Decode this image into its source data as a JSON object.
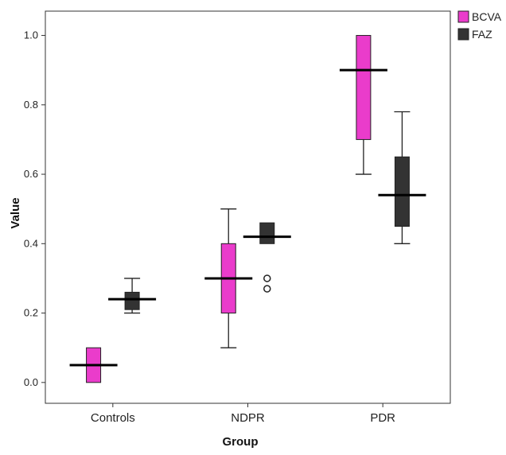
{
  "chart_data": {
    "type": "boxplot",
    "xlabel": "Group",
    "ylabel": "Value",
    "ylim": [
      -0.06,
      1.07
    ],
    "yticks": [
      "0.0",
      "0.2",
      "0.4",
      "0.6",
      "0.8",
      "1.0"
    ],
    "categories": [
      "Controls",
      "NDPR",
      "PDR"
    ],
    "legend_position": "top-right-outside",
    "grid": false,
    "series": [
      {
        "name": "BCVA",
        "color": "#ea3ccb",
        "boxes": [
          {
            "category": "Controls",
            "min": 0.0,
            "q1": 0.0,
            "median": 0.05,
            "q3": 0.1,
            "max": 0.1,
            "outliers": []
          },
          {
            "category": "NDPR",
            "min": 0.1,
            "q1": 0.2,
            "median": 0.3,
            "q3": 0.4,
            "max": 0.5,
            "outliers": []
          },
          {
            "category": "PDR",
            "min": 0.6,
            "q1": 0.7,
            "median": 0.9,
            "q3": 1.0,
            "max": 1.0,
            "outliers": []
          }
        ]
      },
      {
        "name": "FAZ",
        "color": "#333333",
        "boxes": [
          {
            "category": "Controls",
            "min": 0.2,
            "q1": 0.21,
            "median": 0.24,
            "q3": 0.26,
            "max": 0.3,
            "outliers": []
          },
          {
            "category": "NDPR",
            "min": 0.4,
            "q1": 0.4,
            "median": 0.42,
            "q3": 0.46,
            "max": 0.46,
            "outliers": [
              0.3,
              0.27
            ]
          },
          {
            "category": "PDR",
            "min": 0.4,
            "q1": 0.45,
            "median": 0.54,
            "q3": 0.65,
            "max": 0.78,
            "outliers": []
          }
        ]
      }
    ]
  }
}
